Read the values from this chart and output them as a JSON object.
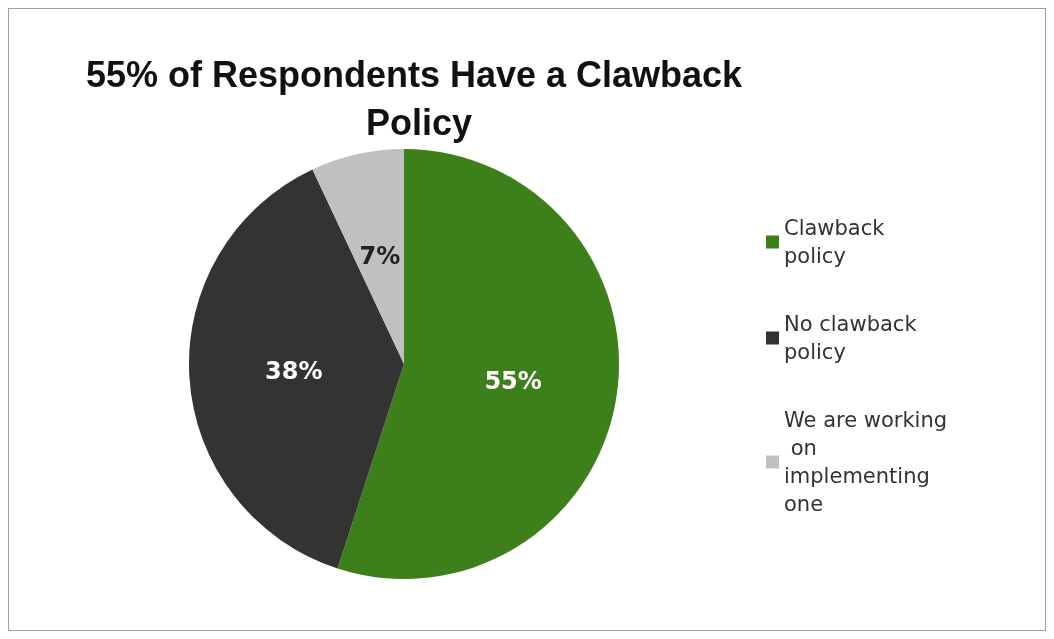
{
  "chart_data": {
    "type": "pie",
    "title": "55% of Respondents Have a Clawback Policy",
    "categories": [
      "Clawback policy",
      "No clawback policy",
      "We are working on implementing one"
    ],
    "values": [
      55,
      38,
      7
    ],
    "colors": [
      "#3c7f1b",
      "#333333",
      "#c0c0c0"
    ],
    "value_labels": [
      "55%",
      "38%",
      "7%"
    ],
    "legend": "right"
  }
}
